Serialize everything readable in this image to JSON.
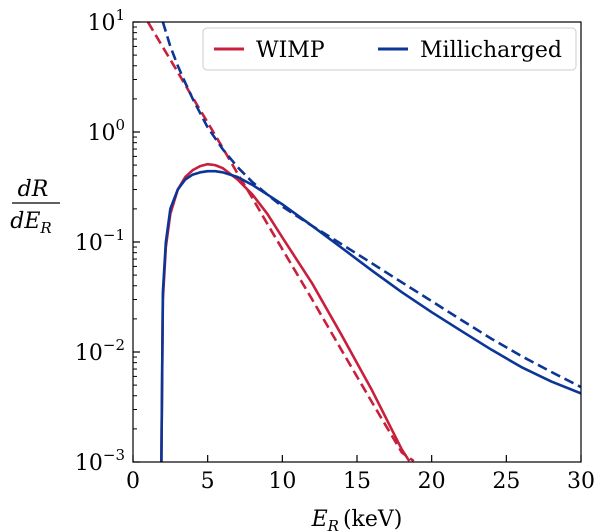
{
  "chart_data": {
    "type": "line",
    "title": "",
    "xlabel": "E_R",
    "xlabel_sub": "R",
    "xlabel_main": "E",
    "xlabel_unit": "(keV)",
    "ylabel_num": "dR",
    "ylabel_den_main": "dE",
    "ylabel_den_sub": "R",
    "xlim": [
      0,
      30
    ],
    "ylim": [
      0.001,
      10
    ],
    "yscale": "log",
    "xticks": [
      "0",
      "5",
      "10",
      "15",
      "20",
      "25",
      "30"
    ],
    "yticks": [
      {
        "base": "10",
        "exp": "−3",
        "value": 0.001
      },
      {
        "base": "10",
        "exp": "−2",
        "value": 0.01
      },
      {
        "base": "10",
        "exp": "−1",
        "value": 0.1
      },
      {
        "base": "10",
        "exp": "0",
        "value": 1
      },
      {
        "base": "10",
        "exp": "1",
        "value": 10
      }
    ],
    "legend_placement": "top-right",
    "series": [
      {
        "name": "WIMP",
        "color": "#c8203c",
        "style": "solid",
        "x": [
          1.9,
          2.0,
          2.2,
          2.5,
          3.0,
          3.5,
          4.0,
          4.5,
          5.0,
          5.5,
          6.0,
          7.0,
          8.0,
          9.0,
          10.0,
          12.0,
          14.0,
          16.0,
          18.0,
          18.5
        ],
        "y": [
          0.001,
          0.03,
          0.09,
          0.18,
          0.3,
          0.39,
          0.45,
          0.49,
          0.51,
          0.5,
          0.47,
          0.37,
          0.27,
          0.18,
          0.11,
          0.042,
          0.014,
          0.0045,
          0.0013,
          0.00102
        ]
      },
      {
        "name": "",
        "color": "#c8203c",
        "style": "dashed",
        "x": [
          1.0,
          2.0,
          3.0,
          4.0,
          5.0,
          6.0,
          7.0,
          8.0,
          9.0,
          10.0,
          12.0,
          14.0,
          16.0,
          18.0,
          18.8
        ],
        "y": [
          10.0,
          5.9,
          3.5,
          2.05,
          1.22,
          0.72,
          0.42,
          0.25,
          0.146,
          0.086,
          0.03,
          0.0102,
          0.0035,
          0.00122,
          0.00102
        ]
      },
      {
        "name": "Millicharged",
        "color": "#0b3596",
        "style": "solid",
        "x": [
          1.9,
          2.0,
          2.2,
          2.5,
          3.0,
          3.5,
          4.0,
          4.5,
          5.0,
          5.5,
          6.0,
          7.0,
          8.0,
          9.0,
          10.0,
          12.0,
          14.0,
          16.0,
          18.0,
          20.0,
          22.0,
          24.0,
          26.0,
          28.0,
          30.0
        ],
        "y": [
          0.001,
          0.035,
          0.1,
          0.2,
          0.3,
          0.37,
          0.41,
          0.43,
          0.44,
          0.44,
          0.43,
          0.39,
          0.33,
          0.27,
          0.22,
          0.14,
          0.088,
          0.055,
          0.035,
          0.023,
          0.0155,
          0.0105,
          0.0073,
          0.0054,
          0.0042
        ]
      },
      {
        "name": "",
        "color": "#0b3596",
        "style": "dashed",
        "x": [
          2.0,
          2.5,
          3.0,
          3.5,
          4.0,
          5.0,
          6.0,
          7.0,
          8.0,
          9.0,
          10.0,
          12.0,
          14.0,
          16.0,
          18.0,
          20.0,
          22.0,
          24.0,
          26.0,
          28.0,
          30.0
        ],
        "y": [
          10.0,
          6.0,
          4.0,
          2.8,
          2.0,
          1.1,
          0.7,
          0.48,
          0.35,
          0.27,
          0.21,
          0.14,
          0.095,
          0.064,
          0.043,
          0.029,
          0.0195,
          0.0132,
          0.0092,
          0.0066,
          0.0048
        ]
      }
    ]
  }
}
